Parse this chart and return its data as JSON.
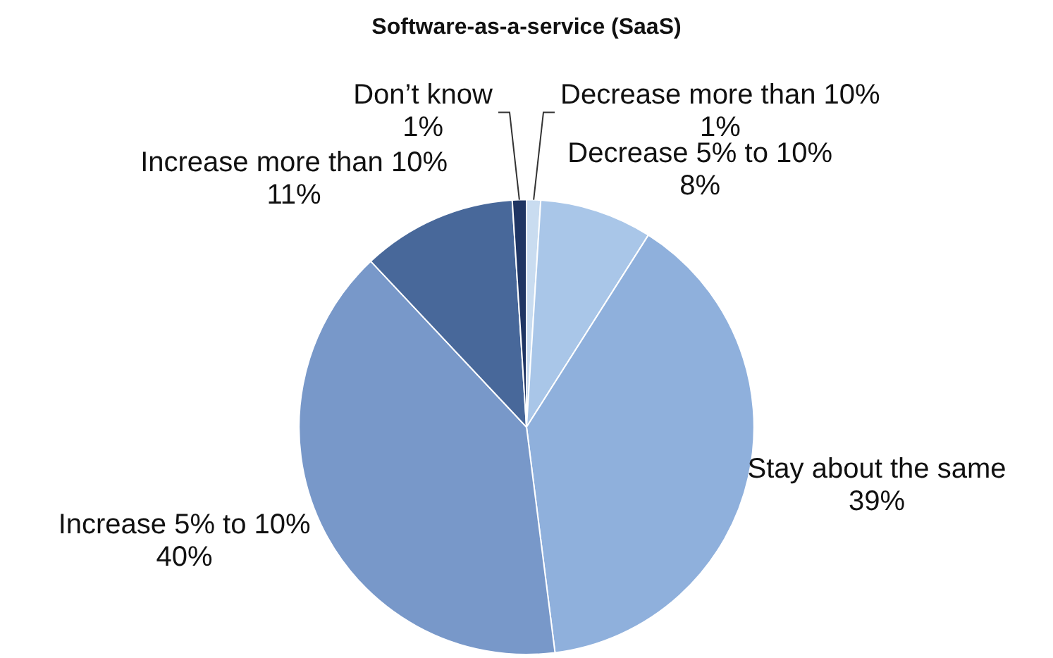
{
  "chart_data": {
    "type": "pie",
    "title": "Software-as-a-service (SaaS)",
    "categories": [
      "Decrease more than 10%",
      "Decrease 5% to 10%",
      "Stay about the same",
      "Increase 5% to 10%",
      "Increase more than 10%",
      "Don’t know"
    ],
    "values": [
      1,
      8,
      39,
      40,
      11,
      1
    ],
    "value_labels": [
      "1%",
      "8%",
      "39%",
      "40%",
      "11%",
      "1%"
    ],
    "colors": [
      "#c9dcf0",
      "#a9c6e8",
      "#8fb0dc",
      "#7898c9",
      "#48689a",
      "#1f3563"
    ],
    "legend": false
  }
}
